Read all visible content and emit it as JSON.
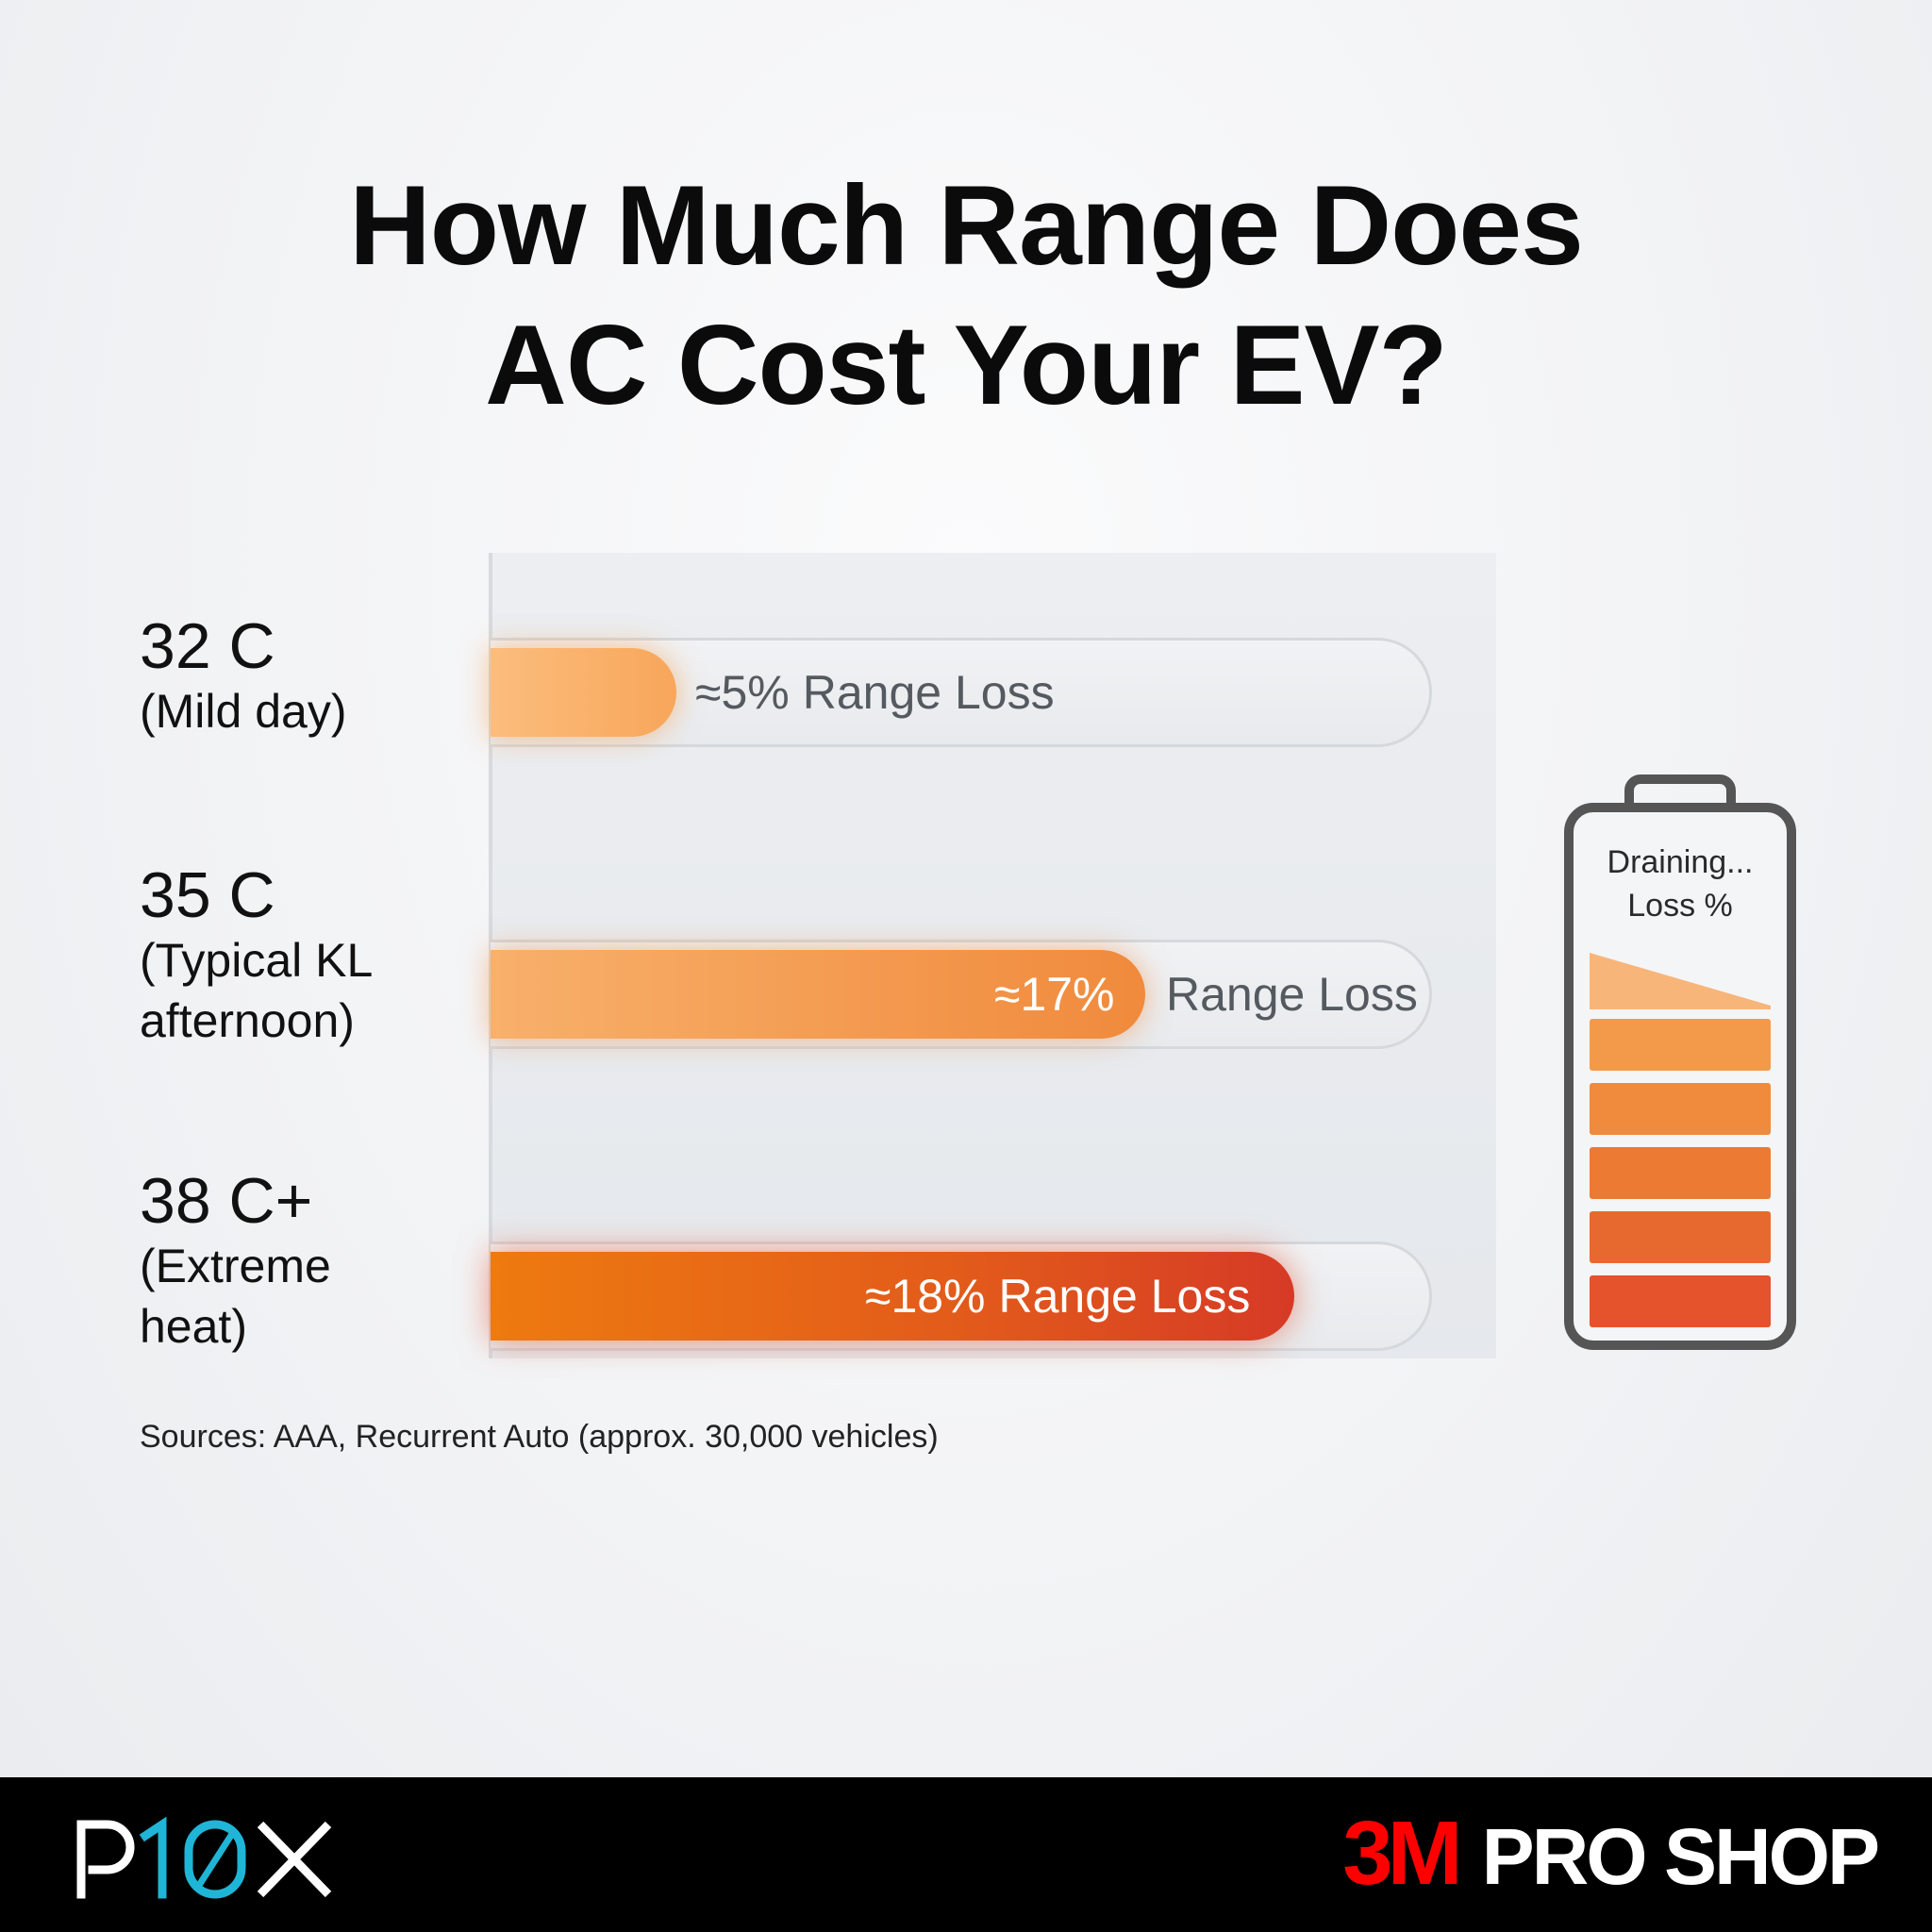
{
  "title": {
    "line1": "How Much Range Does",
    "line2": "AC Cost Your EV?"
  },
  "chart_data": {
    "type": "bar",
    "orientation": "horizontal",
    "categories": [
      {
        "temp": "32 C",
        "desc_lines": [
          "(Mild day)"
        ]
      },
      {
        "temp": "35 C",
        "desc_lines": [
          "(Typical KL",
          "afternoon)"
        ]
      },
      {
        "temp": "38 C+",
        "desc_lines": [
          "(Extreme",
          "heat)"
        ]
      }
    ],
    "values": [
      5,
      17,
      18
    ],
    "unit": "%",
    "data_labels": [
      {
        "value": "≈5%",
        "text": "Range Loss"
      },
      {
        "value": "≈17%",
        "text": "Range Loss"
      },
      {
        "value": "≈18%",
        "text": "Range Loss"
      }
    ],
    "colors": [
      "#f8a65a",
      "#f08a3c",
      "#e04a20"
    ],
    "grid": false,
    "legend": "none"
  },
  "sources": "Sources: AAA, Recurrent Auto (approx. 30,000 vehicles)",
  "battery": {
    "line1": "Draining...",
    "line2": "Loss %",
    "segment_colors": [
      "#f39a4a",
      "#f08a3c",
      "#ec7a32",
      "#e8692f",
      "#e4532c"
    ],
    "top_wedge_color": "#f8b57a"
  },
  "footer": {
    "left_logo": "P10X",
    "right_logo_brand": "3M",
    "right_logo_text": "PRO SHOP",
    "brand_color": "#ff0000",
    "accent_color": "#1fb5d6"
  }
}
